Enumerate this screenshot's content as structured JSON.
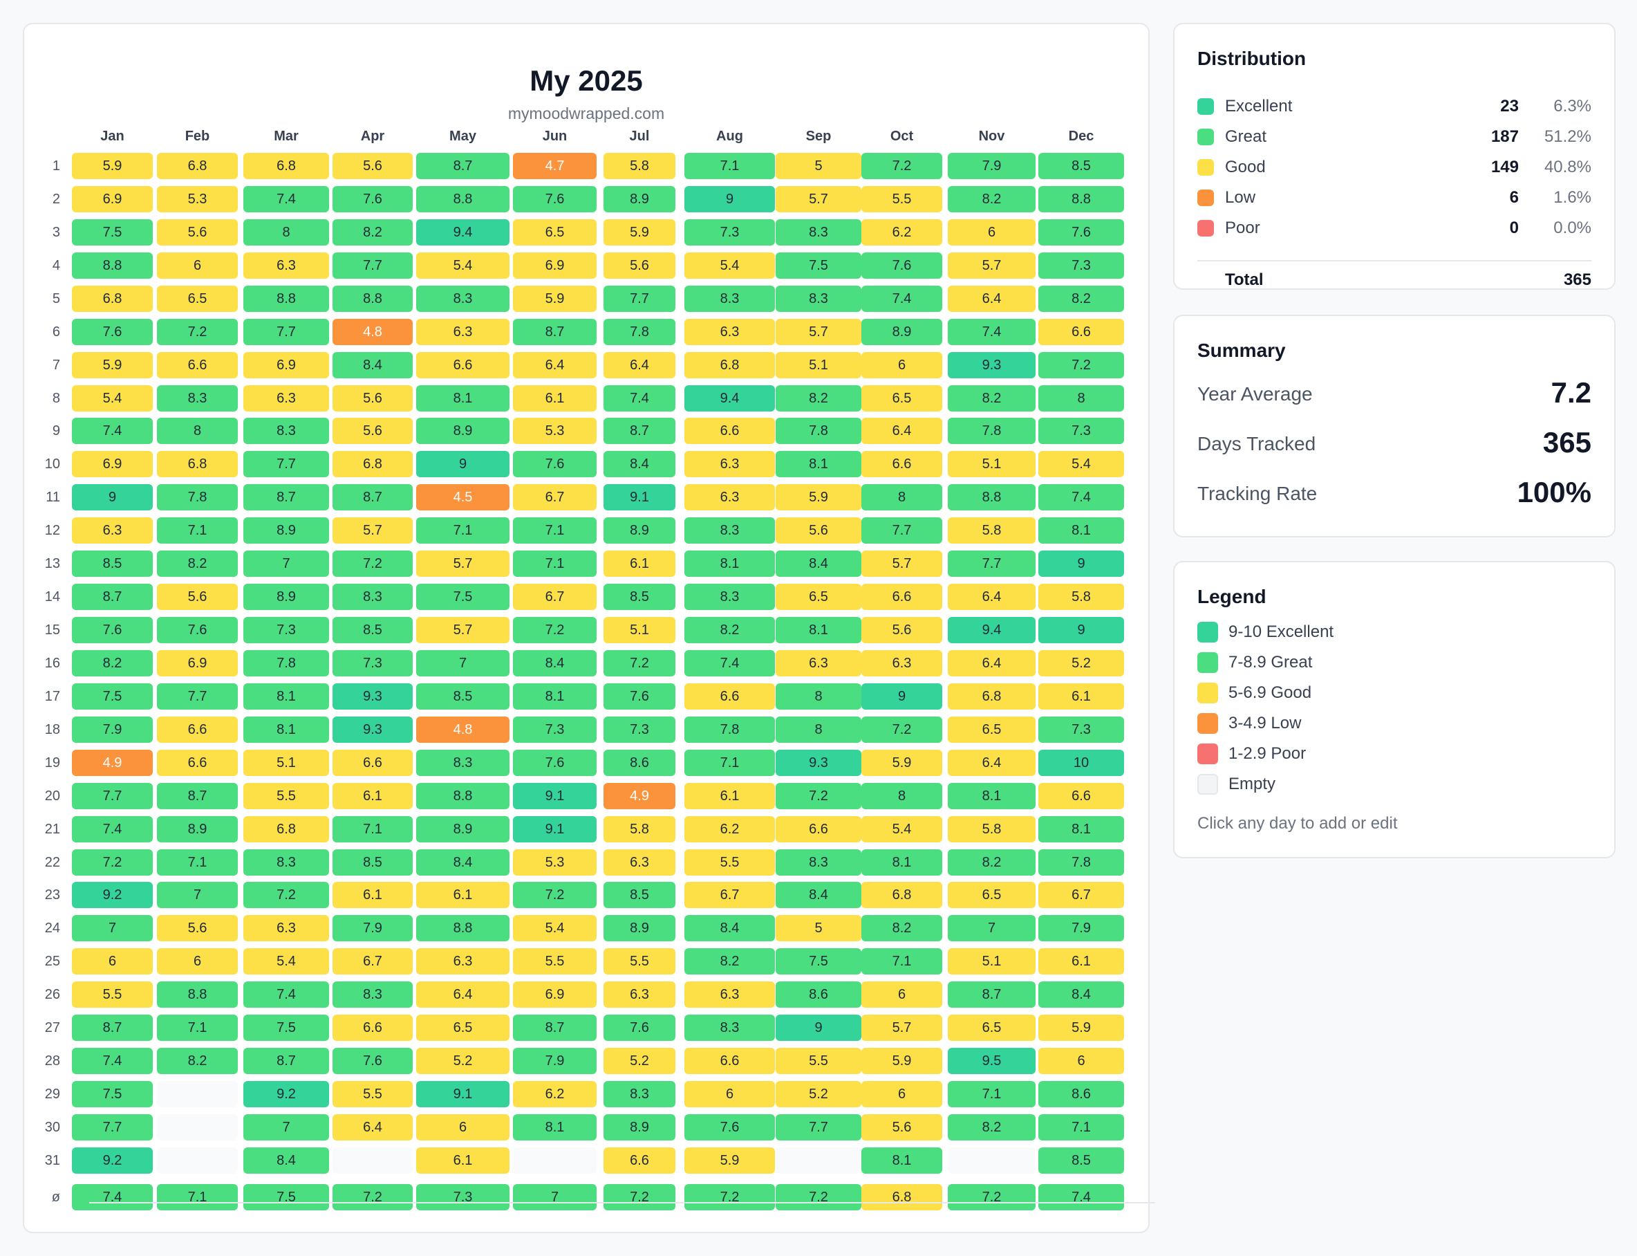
{
  "header": {
    "title": "My 2025",
    "subtitle": "mymoodwrapped.com"
  },
  "colors": {
    "excellent": "#34d399",
    "great": "#4ade80",
    "good": "#fde047",
    "low": "#fb923c",
    "poor": "#f87171",
    "empty": "#f3f4f6"
  },
  "months": [
    "Jan",
    "Feb",
    "Mar",
    "Apr",
    "May",
    "Jun",
    "Jul",
    "Aug",
    "Sep",
    "Oct",
    "Nov",
    "Dec"
  ],
  "days": [
    "1",
    "2",
    "3",
    "4",
    "5",
    "6",
    "7",
    "8",
    "9",
    "10",
    "11",
    "12",
    "13",
    "14",
    "15",
    "16",
    "17",
    "18",
    "19",
    "20",
    "21",
    "22",
    "23",
    "24",
    "25",
    "26",
    "27",
    "28",
    "29",
    "30",
    "31"
  ],
  "avg_label": "ø",
  "grid": [
    [
      "5.9",
      "6.8",
      "6.8",
      "5.6",
      "8.7",
      "4.7",
      "5.8",
      "7.1",
      "5",
      "7.2",
      "7.9",
      "8.5"
    ],
    [
      "6.9",
      "5.3",
      "7.4",
      "7.6",
      "8.8",
      "7.6",
      "8.9",
      "9",
      "5.7",
      "5.5",
      "8.2",
      "8.8"
    ],
    [
      "7.5",
      "5.6",
      "8",
      "8.2",
      "9.4",
      "6.5",
      "5.9",
      "7.3",
      "8.3",
      "6.2",
      "6",
      "7.6"
    ],
    [
      "8.8",
      "6",
      "6.3",
      "7.7",
      "5.4",
      "6.9",
      "5.6",
      "5.4",
      "7.5",
      "7.6",
      "5.7",
      "7.3"
    ],
    [
      "6.8",
      "6.5",
      "8.8",
      "8.8",
      "8.3",
      "5.9",
      "7.7",
      "8.3",
      "8.3",
      "7.4",
      "6.4",
      "8.2"
    ],
    [
      "7.6",
      "7.2",
      "7.7",
      "4.8",
      "6.3",
      "8.7",
      "7.8",
      "6.3",
      "5.7",
      "8.9",
      "7.4",
      "6.6"
    ],
    [
      "5.9",
      "6.6",
      "6.9",
      "8.4",
      "6.6",
      "6.4",
      "6.4",
      "6.8",
      "5.1",
      "6",
      "9.3",
      "7.2"
    ],
    [
      "5.4",
      "8.3",
      "6.3",
      "5.6",
      "8.1",
      "6.1",
      "7.4",
      "9.4",
      "8.2",
      "6.5",
      "8.2",
      "8"
    ],
    [
      "7.4",
      "8",
      "8.3",
      "5.6",
      "8.9",
      "5.3",
      "8.7",
      "6.6",
      "7.8",
      "6.4",
      "7.8",
      "7.3"
    ],
    [
      "6.9",
      "6.8",
      "7.7",
      "6.8",
      "9",
      "7.6",
      "8.4",
      "6.3",
      "8.1",
      "6.6",
      "5.1",
      "5.4"
    ],
    [
      "9",
      "7.8",
      "8.7",
      "8.7",
      "4.5",
      "6.7",
      "9.1",
      "6.3",
      "5.9",
      "8",
      "8.8",
      "7.4"
    ],
    [
      "6.3",
      "7.1",
      "8.9",
      "5.7",
      "7.1",
      "7.1",
      "8.9",
      "8.3",
      "5.6",
      "7.7",
      "5.8",
      "8.1"
    ],
    [
      "8.5",
      "8.2",
      "7",
      "7.2",
      "5.7",
      "7.1",
      "6.1",
      "8.1",
      "8.4",
      "5.7",
      "7.7",
      "9"
    ],
    [
      "8.7",
      "5.6",
      "8.9",
      "8.3",
      "7.5",
      "6.7",
      "8.5",
      "8.3",
      "6.5",
      "6.6",
      "6.4",
      "5.8"
    ],
    [
      "7.6",
      "7.6",
      "7.3",
      "8.5",
      "5.7",
      "7.2",
      "5.1",
      "8.2",
      "8.1",
      "5.6",
      "9.4",
      "9"
    ],
    [
      "8.2",
      "6.9",
      "7.8",
      "7.3",
      "7",
      "8.4",
      "7.2",
      "7.4",
      "6.3",
      "6.3",
      "6.4",
      "5.2"
    ],
    [
      "7.5",
      "7.7",
      "8.1",
      "9.3",
      "8.5",
      "8.1",
      "7.6",
      "6.6",
      "8",
      "9",
      "6.8",
      "6.1"
    ],
    [
      "7.9",
      "6.6",
      "8.1",
      "9.3",
      "4.8",
      "7.3",
      "7.3",
      "7.8",
      "8",
      "7.2",
      "6.5",
      "7.3"
    ],
    [
      "4.9",
      "6.6",
      "5.1",
      "6.6",
      "8.3",
      "7.6",
      "8.6",
      "7.1",
      "9.3",
      "5.9",
      "6.4",
      "10"
    ],
    [
      "7.7",
      "8.7",
      "5.5",
      "6.1",
      "8.8",
      "9.1",
      "4.9",
      "6.1",
      "7.2",
      "8",
      "8.1",
      "6.6"
    ],
    [
      "7.4",
      "8.9",
      "6.8",
      "7.1",
      "8.9",
      "9.1",
      "5.8",
      "6.2",
      "6.6",
      "5.4",
      "5.8",
      "8.1"
    ],
    [
      "7.2",
      "7.1",
      "8.3",
      "8.5",
      "8.4",
      "5.3",
      "6.3",
      "5.5",
      "8.3",
      "8.1",
      "8.2",
      "7.8"
    ],
    [
      "9.2",
      "7",
      "7.2",
      "6.1",
      "6.1",
      "7.2",
      "8.5",
      "6.7",
      "8.4",
      "6.8",
      "6.5",
      "6.7"
    ],
    [
      "7",
      "5.6",
      "6.3",
      "7.9",
      "8.8",
      "5.4",
      "8.9",
      "8.4",
      "5",
      "8.2",
      "7",
      "7.9"
    ],
    [
      "6",
      "6",
      "5.4",
      "6.7",
      "6.3",
      "5.5",
      "5.5",
      "8.2",
      "7.5",
      "7.1",
      "5.1",
      "6.1"
    ],
    [
      "5.5",
      "8.8",
      "7.4",
      "8.3",
      "6.4",
      "6.9",
      "6.3",
      "6.3",
      "8.6",
      "6",
      "8.7",
      "8.4"
    ],
    [
      "8.7",
      "7.1",
      "7.5",
      "6.6",
      "6.5",
      "8.7",
      "7.6",
      "8.3",
      "9",
      "5.7",
      "6.5",
      "5.9"
    ],
    [
      "7.4",
      "8.2",
      "8.7",
      "7.6",
      "5.2",
      "7.9",
      "5.2",
      "6.6",
      "5.5",
      "5.9",
      "9.5",
      "6"
    ],
    [
      "7.5",
      null,
      "9.2",
      "5.5",
      "9.1",
      "6.2",
      "8.3",
      "6",
      "5.2",
      "6",
      "7.1",
      "8.6"
    ],
    [
      "7.7",
      null,
      "7",
      "6.4",
      "6",
      "8.1",
      "8.9",
      "7.6",
      "7.7",
      "5.6",
      "8.2",
      "7.1"
    ],
    [
      "9.2",
      null,
      "8.4",
      null,
      "6.1",
      null,
      "6.6",
      "5.9",
      null,
      "8.1",
      null,
      "8.5"
    ]
  ],
  "averages": [
    "7.4",
    "7.1",
    "7.5",
    "7.2",
    "7.3",
    "7",
    "7.2",
    "7.2",
    "7.2",
    "6.8",
    "7.2",
    "7.4"
  ],
  "distribution": {
    "title": "Distribution",
    "rows": [
      {
        "label": "Excellent",
        "count": "23",
        "pct": "6.3%",
        "color": "#34d399"
      },
      {
        "label": "Great",
        "count": "187",
        "pct": "51.2%",
        "color": "#4ade80"
      },
      {
        "label": "Good",
        "count": "149",
        "pct": "40.8%",
        "color": "#fde047"
      },
      {
        "label": "Low",
        "count": "6",
        "pct": "1.6%",
        "color": "#fb923c"
      },
      {
        "label": "Poor",
        "count": "0",
        "pct": "0.0%",
        "color": "#f87171"
      }
    ],
    "total_label": "Total",
    "total_value": "365"
  },
  "summary": {
    "title": "Summary",
    "year_average_label": "Year Average",
    "year_average_value": "7.2",
    "days_tracked_label": "Days Tracked",
    "days_tracked_value": "365",
    "tracking_rate_label": "Tracking Rate",
    "tracking_rate_value": "100%"
  },
  "legend": {
    "title": "Legend",
    "items": [
      {
        "label": "9-10 Excellent",
        "color": "#34d399"
      },
      {
        "label": "7-8.9 Great",
        "color": "#4ade80"
      },
      {
        "label": "5-6.9 Good",
        "color": "#fde047"
      },
      {
        "label": "3-4.9 Low",
        "color": "#fb923c"
      },
      {
        "label": "1-2.9 Poor",
        "color": "#f87171"
      },
      {
        "label": "Empty",
        "color": "#f3f4f6"
      }
    ],
    "hint": "Click any day to add or edit"
  }
}
